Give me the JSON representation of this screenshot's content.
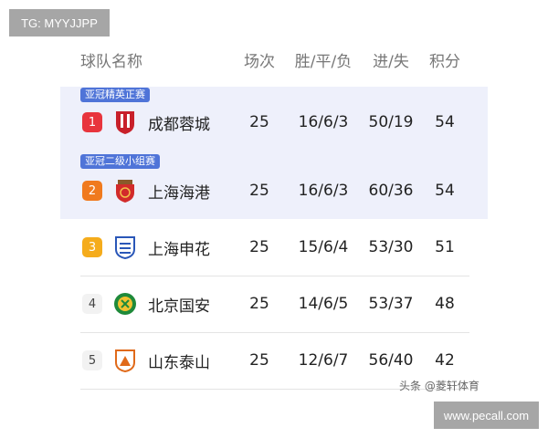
{
  "watermarks": {
    "top_left": "TG: MYYJJPP",
    "bottom_right": "www.pecall.com",
    "source": "头条 @菱轩体育"
  },
  "headers": {
    "team": "球队名称",
    "played": "场次",
    "wdl": "胜/平/负",
    "goals": "进/失",
    "points": "积分"
  },
  "colors": {
    "band": "#eef0fb",
    "tag": "#4f74d8",
    "rank1": "#e8353d",
    "rank2": "#f07a1e",
    "rank3": "#f5ac1c"
  },
  "rows": [
    {
      "tag": "亚冠精英正赛",
      "rank": "1",
      "team": "成都蓉城",
      "played": "25",
      "wdl": "16/6/3",
      "goals": "50/19",
      "points": "54"
    },
    {
      "tag": "亚冠二级小组赛",
      "rank": "2",
      "team": "上海海港",
      "played": "25",
      "wdl": "16/6/3",
      "goals": "60/36",
      "points": "54"
    },
    {
      "rank": "3",
      "team": "上海申花",
      "played": "25",
      "wdl": "15/6/4",
      "goals": "53/30",
      "points": "51"
    },
    {
      "rank": "4",
      "team": "北京国安",
      "played": "25",
      "wdl": "14/6/5",
      "goals": "53/37",
      "points": "48"
    },
    {
      "rank": "5",
      "team": "山东泰山",
      "played": "25",
      "wdl": "12/6/7",
      "goals": "56/40",
      "points": "42"
    }
  ]
}
